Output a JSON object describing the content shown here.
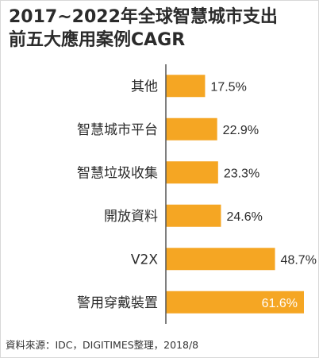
{
  "colors": {
    "bar": "#F5A623",
    "axis": "#555555",
    "text": "#2b2b2b",
    "label_inside": "#ffffff"
  },
  "chart_data": {
    "type": "bar",
    "orientation": "horizontal",
    "title": "2017~2022年全球智慧城市支出前五大應用案例CAGR",
    "title_lines": [
      "2017~2022年全球智慧城市支出",
      "前五大應用案例CAGR"
    ],
    "categories": [
      "其他",
      "智慧城市平台",
      "智慧垃圾收集",
      "開放資料",
      "V2X",
      "警用穿戴裝置"
    ],
    "values": [
      17.5,
      22.9,
      23.3,
      24.6,
      48.7,
      61.6
    ],
    "value_labels": [
      "17.5%",
      "22.9%",
      "23.3%",
      "24.6%",
      "48.7%",
      "61.6%"
    ],
    "unit": "%",
    "xlim": [
      0,
      64
    ],
    "xlabel": "",
    "ylabel": "",
    "grid": false,
    "legend": "none"
  },
  "source": "資料來源：IDC，DIGITIMES整理，2018/8"
}
